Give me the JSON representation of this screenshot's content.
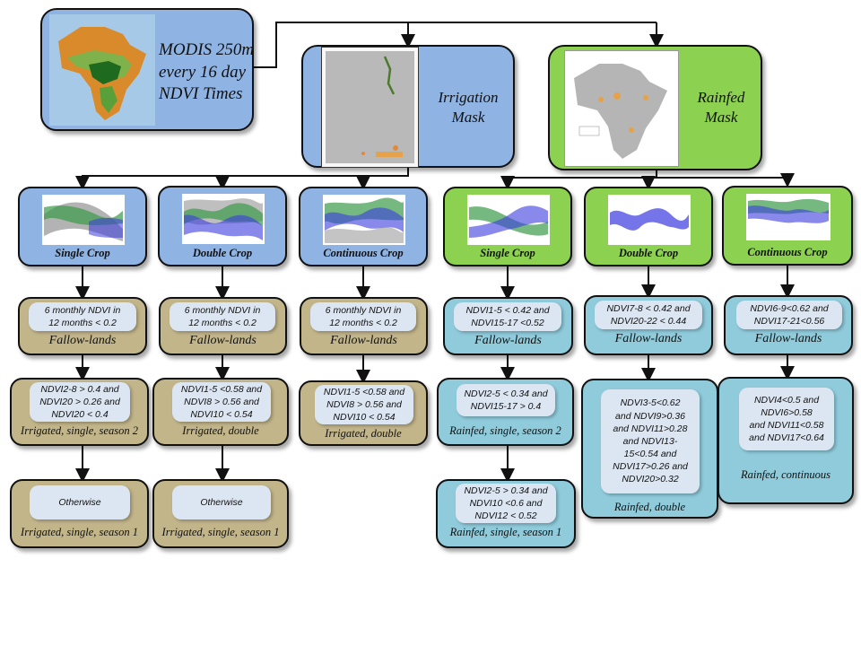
{
  "top": {
    "modis": "MODIS 250m\nevery 16 day\nNDVI Times",
    "irrigation_mask": "Irrigation\nMask",
    "rainfed_mask": "Rainfed\nMask"
  },
  "crops": [
    {
      "label": "Single Crop"
    },
    {
      "label": "Double Crop"
    },
    {
      "label": "Continuous Crop"
    },
    {
      "label": "Single Crop"
    },
    {
      "label": "Double Crop"
    },
    {
      "label": "Continuous Crop"
    }
  ],
  "fallow": [
    {
      "rule": "6 monthly NDVI in\n12 months < 0.2",
      "caption": "Fallow-lands"
    },
    {
      "rule": "6 monthly NDVI in\n12 months < 0.2",
      "caption": "Fallow-lands"
    },
    {
      "rule": "6 monthly NDVI in\n12 months < 0.2",
      "caption": "Fallow-lands"
    },
    {
      "rule": "NDVI1-5 < 0.42 and\nNDVI15-17 <0.52",
      "caption": "Fallow-lands"
    },
    {
      "rule": "NDVI7-8 < 0.42 and\nNDVI20-22 < 0.44",
      "caption": "Fallow-lands"
    },
    {
      "rule": "NDVI6-9<0.62 and\nNDVI17-21<0.56",
      "caption": "Fallow-lands"
    }
  ],
  "level3": [
    {
      "rule": "NDVI2-8 > 0.4 and\nNDVI20 > 0.26 and\nNDVI20 < 0.4",
      "caption": "Irrigated, single, season 2"
    },
    {
      "rule": "NDVI1-5 <0.58 and\nNDVI8 > 0.56 and\nNDVI10 < 0.54",
      "caption": "Irrigated, double"
    },
    {
      "rule": "NDVI1-5 <0.58 and\nNDVI8 > 0.56 and\nNDVI10 < 0.54",
      "caption": "Irrigated, double"
    },
    {
      "rule": "NDVI2-5 < 0.34 and\nNDVI15-17 > 0.4",
      "caption": "Rainfed, single, season 2"
    },
    {
      "rule": "NDVI3-5<0.62\nand NDVI9>0.36\nand NDVI11>0.28\nand NDVI13-\n15<0.54 and\nNDVI17>0.26 and\nNDVI20>0.32",
      "caption": "Rainfed, double"
    },
    {
      "rule": "NDVI4<0.5 and\nNDVI6>0.58\nand NDVI11<0.58\nand NDVI17<0.64",
      "caption": "Rainfed, continuous"
    }
  ],
  "level4": [
    {
      "rule": "Otherwise",
      "caption": "Irrigated, single, season 1"
    },
    {
      "rule": "Otherwise",
      "caption": "Irrigated, single, season 1"
    },
    {
      "rule": "NDVI2-5 > 0.34 and\nNDVI10 <0.6 and\nNDVI12 < 0.52",
      "caption": "Rainfed, single, season 1"
    }
  ],
  "colors": {
    "irrigated_box": "#8fb3e3",
    "rainfed_box": "#8cd14f",
    "irrigated_rule": "#c2b58a",
    "rainfed_rule": "#8fcbdb",
    "rule_inner": "#dce6f2",
    "series_green": "#3a9a4a",
    "series_blue": "#3a3adf",
    "series_gray": "#8a8a8a"
  }
}
